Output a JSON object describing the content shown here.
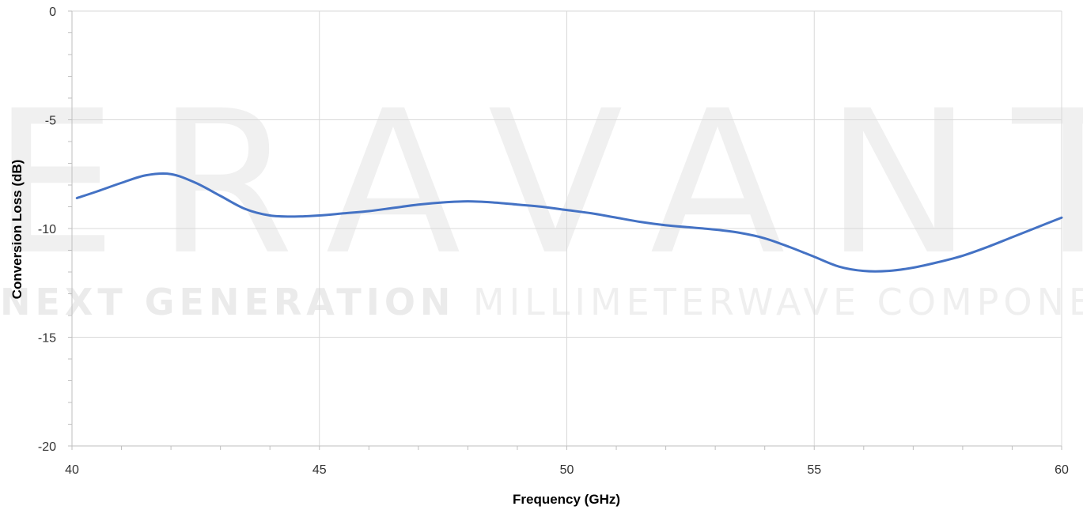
{
  "watermark": {
    "brand": "ERAVANT",
    "tagline_bold": "NEXT GENERATION",
    "tagline": "MILLIMETERWAVE COMPONENTS"
  },
  "chart_data": {
    "type": "line",
    "title": "",
    "xlabel": "Frequency (GHz)",
    "ylabel": "Conversion Loss (dB)",
    "xlim": [
      40,
      60
    ],
    "ylim": [
      -20,
      0
    ],
    "xticks": [
      40,
      45,
      50,
      55,
      60
    ],
    "yticks": [
      0,
      -5,
      -10,
      -15,
      -20
    ],
    "grid": true,
    "legend": "none",
    "series": [
      {
        "color": "#4472c4",
        "x": [
          40.1,
          40.5,
          41,
          41.5,
          42,
          42.5,
          43,
          43.5,
          44,
          44.5,
          45,
          45.5,
          46,
          46.5,
          47,
          47.5,
          48,
          48.5,
          49,
          49.5,
          50,
          50.5,
          51,
          51.5,
          52,
          52.5,
          53,
          53.5,
          54,
          54.5,
          55,
          55.5,
          56,
          56.5,
          57,
          57.5,
          58,
          58.5,
          59,
          59.5,
          60
        ],
        "y": [
          -8.6,
          -8.3,
          -7.9,
          -7.55,
          -7.5,
          -7.9,
          -8.5,
          -9.1,
          -9.4,
          -9.45,
          -9.4,
          -9.3,
          -9.2,
          -9.05,
          -8.9,
          -8.8,
          -8.75,
          -8.8,
          -8.9,
          -9.0,
          -9.15,
          -9.3,
          -9.5,
          -9.7,
          -9.85,
          -9.95,
          -10.05,
          -10.2,
          -10.45,
          -10.85,
          -11.3,
          -11.75,
          -11.95,
          -11.95,
          -11.8,
          -11.55,
          -11.25,
          -10.85,
          -10.4,
          -9.95,
          -9.5
        ]
      }
    ]
  }
}
